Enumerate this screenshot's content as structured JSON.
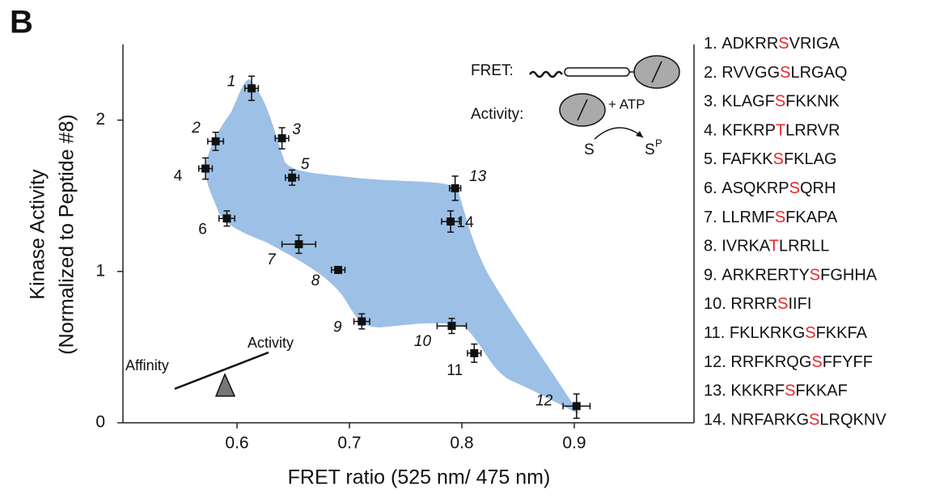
{
  "chart_data": {
    "type": "scatter",
    "panel": "B",
    "x_label": "FRET ratio (525 nm/ 475 nm)",
    "y_label": [
      "Kinase Activity",
      "(Normalized to Peptide #8)"
    ],
    "xlim": [
      0.5,
      1.0
    ],
    "ylim": [
      0,
      2.5
    ],
    "xticks": [
      0.6,
      0.7,
      0.8,
      0.9
    ],
    "yticks": [
      0,
      1,
      2
    ],
    "series": [
      {
        "color": "#111111",
        "labels": [
          "1",
          "2",
          "3",
          "4",
          "5",
          "6",
          "7",
          "8",
          "9",
          "10",
          "11",
          "12",
          "13",
          "14"
        ],
        "x": [
          0.613,
          0.581,
          0.64,
          0.572,
          0.649,
          0.591,
          0.655,
          0.69,
          0.711,
          0.791,
          0.811,
          0.902,
          0.794,
          0.79
        ],
        "y": [
          2.21,
          1.86,
          1.88,
          1.68,
          1.62,
          1.35,
          1.18,
          1.01,
          0.67,
          0.64,
          0.46,
          0.11,
          1.55,
          1.33
        ],
        "xerr": [
          0.006,
          0.007,
          0.006,
          0.006,
          0.006,
          0.007,
          0.015,
          0.006,
          0.007,
          0.013,
          0.006,
          0.012,
          0.005,
          0.008
        ],
        "yerr": [
          0.08,
          0.06,
          0.07,
          0.07,
          0.05,
          0.05,
          0.06,
          0.02,
          0.05,
          0.05,
          0.06,
          0.08,
          0.08,
          0.07
        ]
      }
    ],
    "inset": {
      "fret": "FRET:",
      "activity": "Activity:",
      "atp": "+ ATP",
      "substrate": "S",
      "product": "S",
      "product_sup": "P"
    },
    "seesaw": {
      "left": "Affinity",
      "right": "Activity"
    },
    "sequences": [
      {
        "number": "1.",
        "before": "ADKRR",
        "site": "S",
        "after": "VRIGA"
      },
      {
        "number": "2.",
        "before": "RVVGG",
        "site": "S",
        "after": "LRGAQ"
      },
      {
        "number": "3.",
        "before": "KLAGF",
        "site": "S",
        "after": "FKKNK"
      },
      {
        "number": "4.",
        "before": "KFKRP",
        "site": "T",
        "after": "LRRVR"
      },
      {
        "number": "5.",
        "before": "FAFKK",
        "site": "S",
        "after": "FKLAG"
      },
      {
        "number": "6.",
        "before": "ASQKRP",
        "site": "S",
        "after": "QRH"
      },
      {
        "number": "7.",
        "before": "LLRMF",
        "site": "S",
        "after": "FKAPA"
      },
      {
        "number": "8.",
        "before": "IVRKA",
        "site": "T",
        "after": "LRRLL"
      },
      {
        "number": "9.",
        "before": "ARKRERTY",
        "site": "S",
        "after": "FGHHA"
      },
      {
        "number": "10.",
        "before": "RRRR",
        "site": "S",
        "after": "IIFI"
      },
      {
        "number": "11.",
        "before": "FKLKRKG",
        "site": "S",
        "after": "FKKFA"
      },
      {
        "number": "12.",
        "before": "RRFKRQG",
        "site": "S",
        "after": "FFYFF"
      },
      {
        "number": "13.",
        "before": "KKKRF",
        "site": "S",
        "after": "FKKAF"
      },
      {
        "number": "14.",
        "before": "NRFARKG",
        "site": "S",
        "after": "LRQKNV"
      }
    ],
    "site_color": "#e8282a"
  }
}
